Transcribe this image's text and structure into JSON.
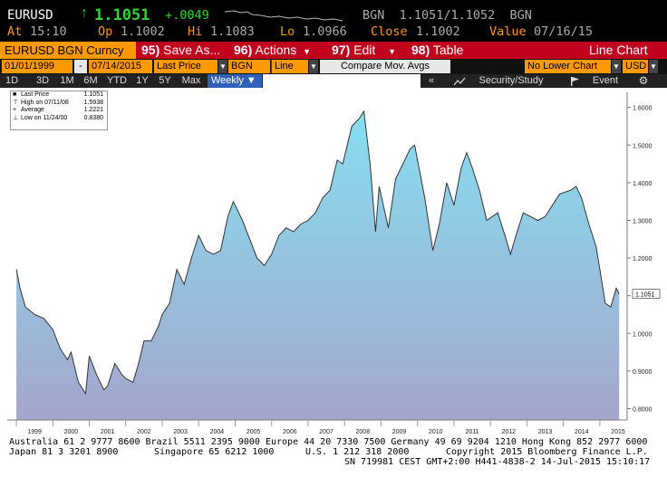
{
  "quote": {
    "ticker": "EURUSD",
    "arrow": "↑",
    "last": "1.1051",
    "change": "+.0049",
    "bid_ask": "BGN  1.1051/1.1052  BGN",
    "at_label": "At",
    "at_value": "15:10",
    "op_label": "Op",
    "op_value": "1.1002",
    "hi_label": "Hi",
    "hi_value": "1.1083",
    "lo_label": "Lo",
    "lo_value": "1.0966",
    "close_label": "Close",
    "close_value": "1.1002",
    "value_label": "Value",
    "value_value": "07/16/15"
  },
  "toolbar": {
    "security": "EURUSD BGN Curncy",
    "save_num": "95)",
    "save_label": "Save As...",
    "actions_num": "96)",
    "actions_label": "Actions",
    "edit_num": "97)",
    "edit_label": "Edit",
    "table_num": "98)",
    "table_label": "Table",
    "chart_type": "Line Chart"
  },
  "fields": {
    "start_date": "01/01/1999",
    "dash": "-",
    "end_date": "07/14/2015",
    "price_field": "Last Price",
    "source": "BGN",
    "style": "Line",
    "compare": "Compare Mov. Avgs",
    "lower_chart": "No Lower Chart",
    "currency": "USD"
  },
  "ranges": {
    "items": [
      "1D",
      "3D",
      "1M",
      "6M",
      "YTD",
      "1Y",
      "5Y",
      "Max"
    ],
    "period": "Weekly ▼",
    "scroll": "«",
    "security_study": "Security/Study",
    "event": "Event",
    "settings_icon": "gear-icon",
    "study_icon": "chart-lines-icon",
    "event_icon": "flag-icon"
  },
  "legend": {
    "rows": [
      {
        "label": "Last Price",
        "value": "1.1051",
        "icon": "■"
      },
      {
        "label": "High on 07/11/08",
        "value": "1.5938",
        "icon": "⊤"
      },
      {
        "label": "Average",
        "value": "1.2221",
        "icon": "+"
      },
      {
        "label": "Low on 11/24/00",
        "value": "0.8380",
        "icon": "⊥"
      }
    ]
  },
  "chart_data": {
    "type": "area",
    "ylim": [
      0.77,
      1.64
    ],
    "y_ticks": [
      "1.6000",
      "1.5000",
      "1.4000",
      "1.3000",
      "1.2000",
      "1.1000",
      "1.0000",
      "0.9000",
      "0.8000"
    ],
    "x_ticks": [
      "1999",
      "2000",
      "2001",
      "2002",
      "2003",
      "2004",
      "2005",
      "2006",
      "2007",
      "2008",
      "2009",
      "2010",
      "2011",
      "2012",
      "2013",
      "2014",
      "2015"
    ],
    "last_label": "1.1051",
    "series": [
      {
        "x": [
          1999.0,
          1999.1,
          1999.25,
          1999.5,
          1999.75,
          2000.0,
          2000.2,
          2000.4,
          2000.5,
          2000.7,
          2000.9,
          2001.0,
          2001.2,
          2001.4,
          2001.5,
          2001.7,
          2001.9,
          2002.0,
          2002.2,
          2002.35,
          2002.5,
          2002.7,
          2002.9,
          2003.0,
          2003.2,
          2003.4,
          2003.6,
          2003.8,
          2004.0,
          2004.2,
          2004.4,
          2004.6,
          2004.8,
          2004.95,
          2005.2,
          2005.4,
          2005.6,
          2005.8,
          2006.0,
          2006.2,
          2006.4,
          2006.6,
          2006.8,
          2007.0,
          2007.2,
          2007.4,
          2007.6,
          2007.8,
          2007.95,
          2008.2,
          2008.4,
          2008.53,
          2008.7,
          2008.85,
          2008.95,
          2009.2,
          2009.4,
          2009.6,
          2009.8,
          2009.92,
          2010.2,
          2010.42,
          2010.6,
          2010.8,
          2011.0,
          2011.2,
          2011.35,
          2011.5,
          2011.7,
          2011.9,
          2012.2,
          2012.4,
          2012.55,
          2012.7,
          2012.9,
          2013.1,
          2013.3,
          2013.5,
          2013.7,
          2013.9,
          2014.2,
          2014.35,
          2014.5,
          2014.7,
          2014.9,
          2015.0,
          2015.15,
          2015.3,
          2015.45,
          2015.53
        ],
        "values": [
          1.17,
          1.12,
          1.07,
          1.05,
          1.04,
          1.01,
          0.96,
          0.93,
          0.95,
          0.87,
          0.84,
          0.94,
          0.89,
          0.85,
          0.86,
          0.92,
          0.89,
          0.88,
          0.87,
          0.92,
          0.98,
          0.98,
          1.02,
          1.05,
          1.08,
          1.17,
          1.13,
          1.2,
          1.26,
          1.22,
          1.21,
          1.22,
          1.31,
          1.35,
          1.3,
          1.25,
          1.2,
          1.18,
          1.21,
          1.26,
          1.28,
          1.27,
          1.29,
          1.3,
          1.32,
          1.36,
          1.38,
          1.46,
          1.45,
          1.55,
          1.57,
          1.59,
          1.45,
          1.27,
          1.39,
          1.28,
          1.41,
          1.45,
          1.49,
          1.5,
          1.36,
          1.22,
          1.29,
          1.4,
          1.34,
          1.44,
          1.48,
          1.44,
          1.38,
          1.3,
          1.32,
          1.26,
          1.21,
          1.26,
          1.32,
          1.31,
          1.3,
          1.31,
          1.34,
          1.37,
          1.38,
          1.39,
          1.36,
          1.29,
          1.23,
          1.17,
          1.08,
          1.07,
          1.12,
          1.1051
        ]
      }
    ]
  },
  "footer": {
    "line1": "Australia 61 2 9777 8600 Brazil 5511 2395 9000 Europe 44 20 7330 7500 Germany 49 69 9204 1210 Hong Kong 852 2977 6000",
    "line2a": "Japan 81 3 3201 8900",
    "line2b": "Singapore 65 6212 1000",
    "line2c": "U.S. 1 212 318 2000",
    "line2d": "Copyright 2015 Bloomberg Finance L.P.",
    "line3": "SN 719981 CEST GMT+2:00 H441-4838-2 14-Jul-2015 15:10:17"
  },
  "colors": {
    "bg_black": "#000000",
    "toolbar_red": "#c0001c",
    "amber": "#ff9900",
    "green": "#2fd52f",
    "area_top": "#86def0",
    "area_bottom": "#a5a6cc"
  }
}
